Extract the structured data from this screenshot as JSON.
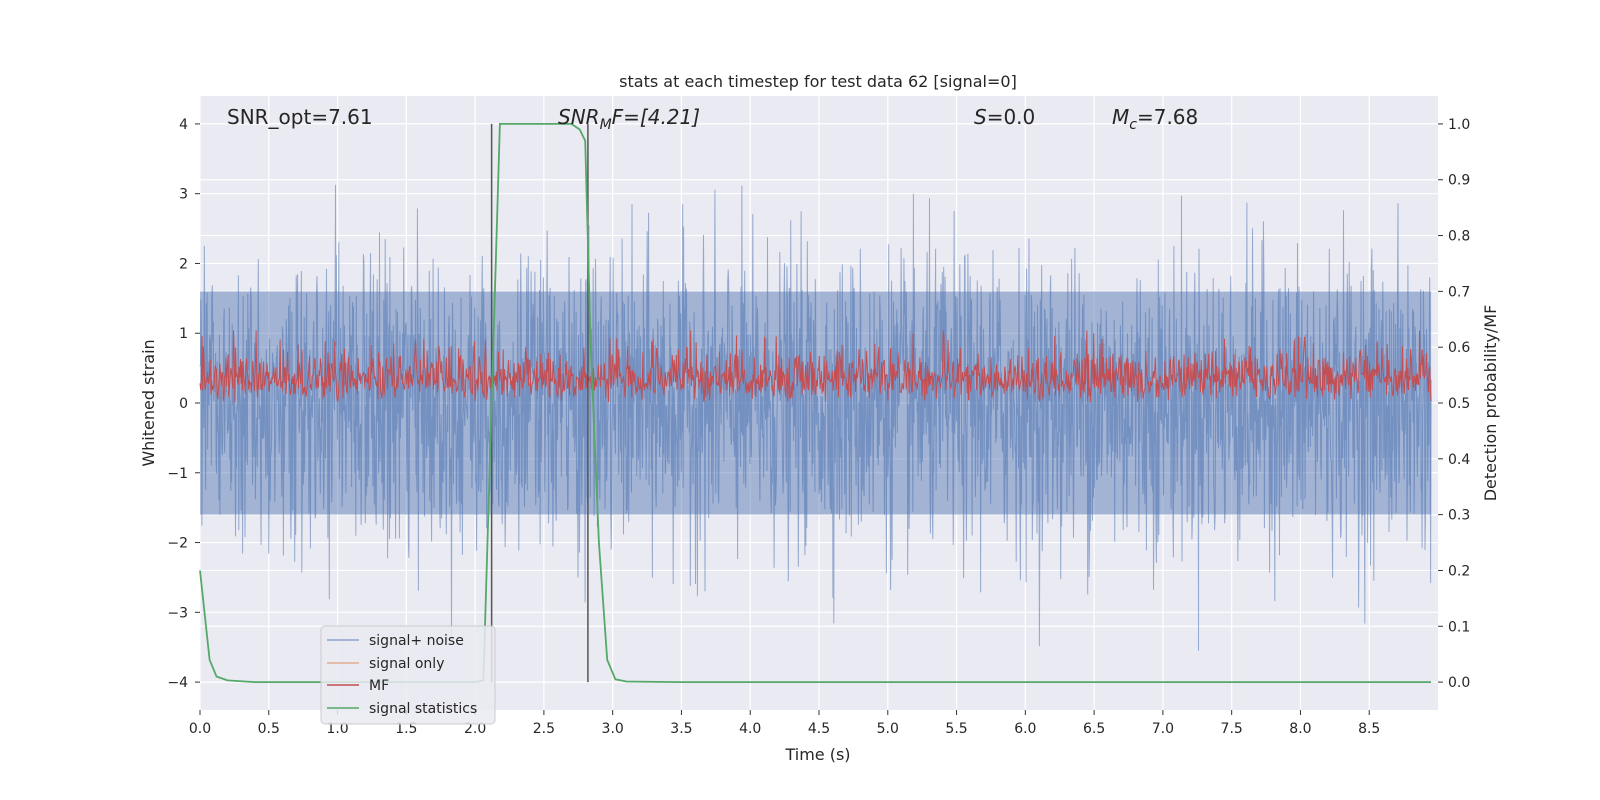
{
  "chart_data": {
    "type": "line",
    "title": "stats at each timestep for test data 62 [signal=0]",
    "xlabel": "Time (s)",
    "ylabel_left": "Whitened strain",
    "ylabel_right": "Detection probability/MF",
    "xlim": [
      0,
      9
    ],
    "ylim_left": [
      -4.4,
      4.4
    ],
    "ylim_right": [
      -0.05,
      1.05
    ],
    "x_ticks": [
      "0.0",
      "0.5",
      "1.0",
      "1.5",
      "2.0",
      "2.5",
      "3.0",
      "3.5",
      "4.0",
      "4.5",
      "5.0",
      "5.5",
      "6.0",
      "6.5",
      "7.0",
      "7.5",
      "8.0",
      "8.5"
    ],
    "x_tick_values": [
      0,
      0.5,
      1,
      1.5,
      2,
      2.5,
      3,
      3.5,
      4,
      4.5,
      5,
      5.5,
      6,
      6.5,
      7,
      7.5,
      8,
      8.5
    ],
    "y_ticks_left": [
      "4",
      "3",
      "2",
      "1",
      "0",
      "−1",
      "−2",
      "−3",
      "−4"
    ],
    "y_tick_values_left": [
      4,
      3,
      2,
      1,
      0,
      -1,
      -2,
      -3,
      -4
    ],
    "y_ticks_right": [
      "1.0",
      "0.9",
      "0.8",
      "0.7",
      "0.6",
      "0.5",
      "0.4",
      "0.3",
      "0.2",
      "0.1",
      "0.0"
    ],
    "y_tick_values_right": [
      1.0,
      0.9,
      0.8,
      0.7,
      0.6,
      0.5,
      0.4,
      0.3,
      0.2,
      0.1,
      0.0
    ],
    "annotations": {
      "snr_opt": "SNR_opt=7.61",
      "snr_mf_prefix": "SNR",
      "snr_mf_sub": "M",
      "snr_mf_suffix": "F=[4.21]",
      "s_prefix": "S",
      "s_suffix": "=0.0",
      "mc_prefix": "M",
      "mc_sub": "c",
      "mc_suffix": "=7.68"
    },
    "vertical_lines_x": [
      2.12,
      2.82
    ],
    "series": [
      {
        "name": "signal+ noise",
        "color": "#4c72b0",
        "note": "dense noise, roughly ±1.5 with spikes to ±3.5"
      },
      {
        "name": "signal only",
        "color": "#dd8452",
        "note": "not visible"
      },
      {
        "name": "MF",
        "color": "#c44e52",
        "note": "right axis, fluctuates ~0.5–0.63"
      },
      {
        "name": "signal statistics",
        "color": "#55a868",
        "x": [
          0,
          0.07,
          0.12,
          0.2,
          0.4,
          1.0,
          1.6,
          2.0,
          2.06,
          2.12,
          2.18,
          2.7,
          2.76,
          2.8,
          2.84,
          2.9,
          2.96,
          3.02,
          3.1,
          3.5,
          8.95
        ],
        "y": [
          0.2,
          0.04,
          0.01,
          0.003,
          0.0,
          0.0,
          0.0,
          0.0,
          0.003,
          0.5,
          1.0,
          1.0,
          0.99,
          0.97,
          0.6,
          0.25,
          0.04,
          0.005,
          0.001,
          0.0,
          0.0
        ]
      }
    ],
    "legend_position": "lower-left",
    "legend_labels": [
      "signal+ noise",
      "signal only",
      "MF",
      "signal statistics"
    ],
    "colors": {
      "background": "#eaeaf2",
      "grid": "#ffffff",
      "vline": "#555555"
    }
  }
}
